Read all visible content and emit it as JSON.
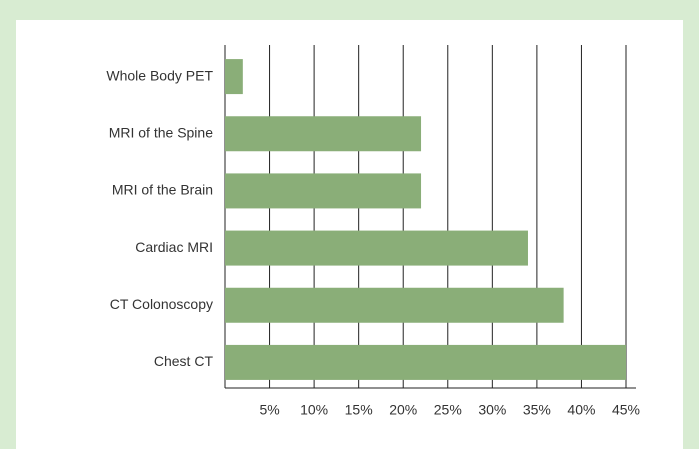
{
  "chart_data": {
    "type": "barh",
    "categories": [
      "Whole Body PET",
      "MRI of the Spine",
      "MRI of the Brain",
      "Cardiac MRI",
      "CT Colonoscopy",
      "Chest CT"
    ],
    "values": [
      2,
      22,
      22,
      34,
      38,
      45
    ],
    "color": "#8aae78",
    "xlim": [
      0,
      45
    ],
    "xticks": [
      {
        "value": 5,
        "label": "5%"
      },
      {
        "value": 10,
        "label": "10%"
      },
      {
        "value": 15,
        "label": "15%"
      },
      {
        "value": 20,
        "label": "20%"
      },
      {
        "value": 25,
        "label": "25%"
      },
      {
        "value": 30,
        "label": "30%"
      },
      {
        "value": 35,
        "label": "35%"
      },
      {
        "value": 40,
        "label": "40%"
      },
      {
        "value": 45,
        "label": "45%"
      }
    ],
    "grid": true
  }
}
